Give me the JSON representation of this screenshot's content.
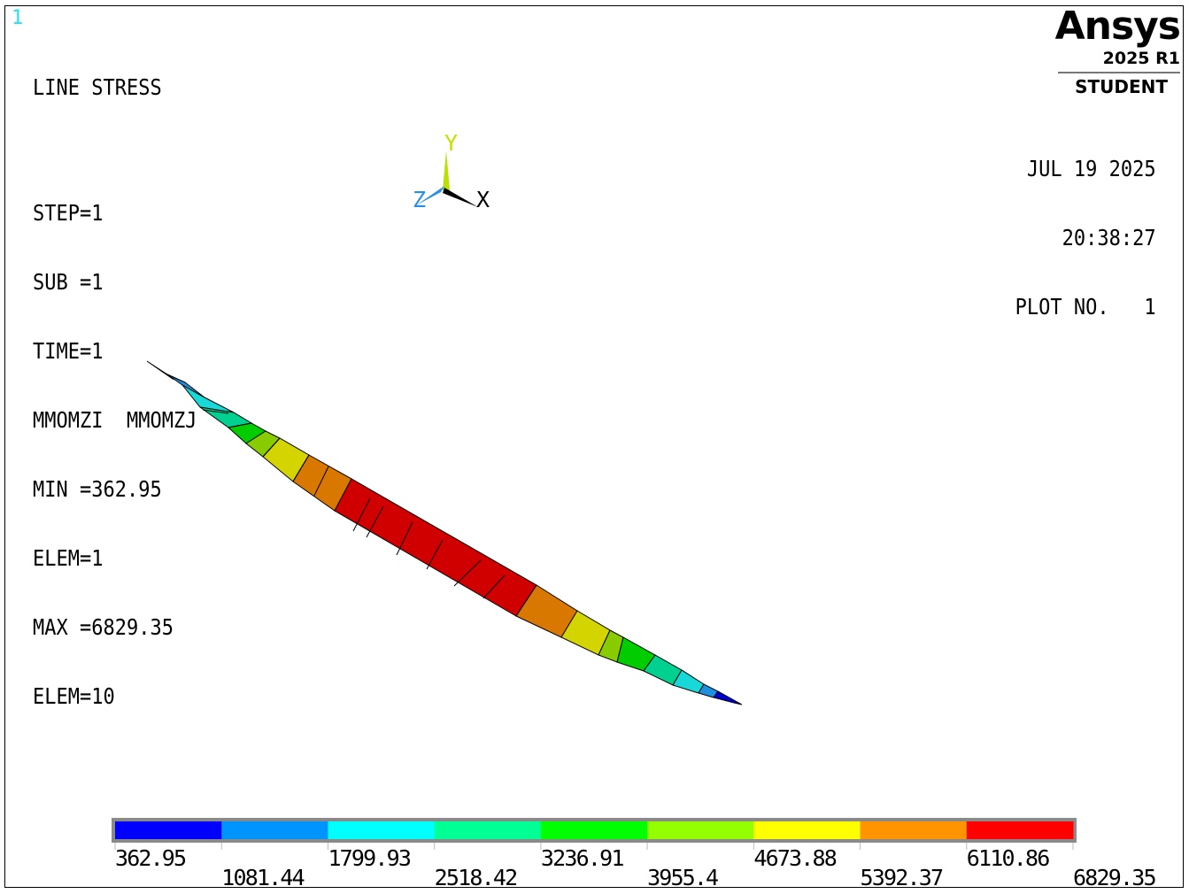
{
  "window_number": "1",
  "info": {
    "title": "LINE STRESS",
    "step": "STEP=1",
    "sub": "SUB =1",
    "time": "TIME=1",
    "items": "MMOMZI  MMOMZJ",
    "min": "MIN =362.95",
    "min_elem": "ELEM=1",
    "max": "MAX =6829.35",
    "max_elem": "ELEM=10"
  },
  "header_right": {
    "date": "JUL 19 2025",
    "time": "20:38:27",
    "plot_no": "PLOT NO.   1"
  },
  "logo": {
    "name": "Ansys",
    "version": "2025 R1",
    "edition": "STUDENT"
  },
  "triad": {
    "x_label": "X",
    "y_label": "Y",
    "z_label": "Z"
  },
  "legend": {
    "colors": [
      "#0000ff",
      "#0094ff",
      "#00ffff",
      "#00ff94",
      "#00ff00",
      "#94ff00",
      "#ffff00",
      "#ff9400",
      "#ff0000"
    ],
    "values": [
      "362.95",
      "1081.44",
      "1799.93",
      "2518.42",
      "3236.91",
      "3955.4",
      "4673.88",
      "5392.37",
      "6110.86",
      "6829.35"
    ]
  },
  "colors": {
    "c_blue": "#0000cc",
    "c_lightblue": "#1f8fe0",
    "c_cyan": "#18d8d8",
    "c_teal": "#00d090",
    "c_green": "#00cc00",
    "c_lime": "#88cc00",
    "c_yellow": "#d4d400",
    "c_orange": "#d87800",
    "c_red": "#d00000"
  }
}
